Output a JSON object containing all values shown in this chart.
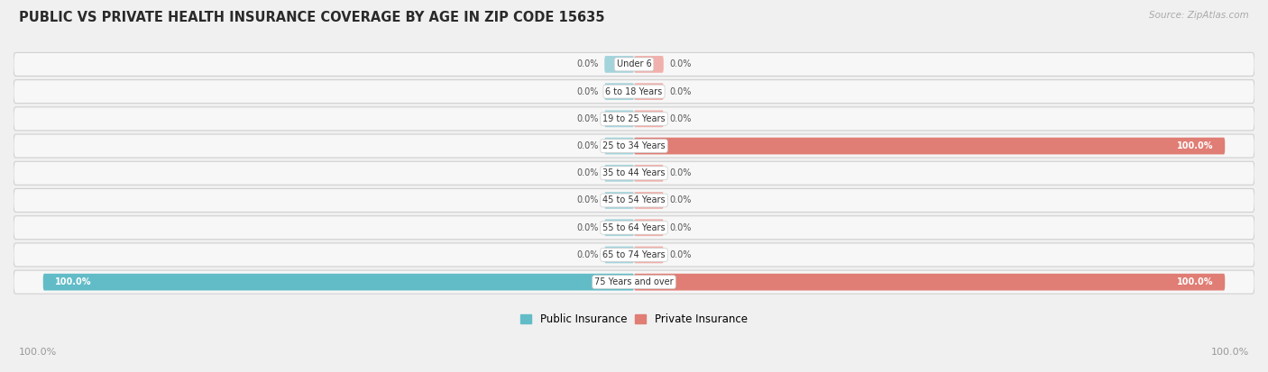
{
  "title": "PUBLIC VS PRIVATE HEALTH INSURANCE COVERAGE BY AGE IN ZIP CODE 15635",
  "source": "Source: ZipAtlas.com",
  "categories": [
    "Under 6",
    "6 to 18 Years",
    "19 to 25 Years",
    "25 to 34 Years",
    "35 to 44 Years",
    "45 to 54 Years",
    "55 to 64 Years",
    "65 to 74 Years",
    "75 Years and over"
  ],
  "public_values": [
    0.0,
    0.0,
    0.0,
    0.0,
    0.0,
    0.0,
    0.0,
    0.0,
    100.0
  ],
  "private_values": [
    0.0,
    0.0,
    0.0,
    100.0,
    0.0,
    0.0,
    0.0,
    0.0,
    100.0
  ],
  "public_color": "#62bcc8",
  "private_color": "#e07d74",
  "public_stub_color": "#a4d4db",
  "private_stub_color": "#f0b0ab",
  "row_bg_color": "#ececec",
  "row_inner_color": "#f7f7f7",
  "fig_bg_color": "#f0f0f0",
  "title_color": "#2a2a2a",
  "source_color": "#aaaaaa",
  "value_color_dark": "#555555",
  "value_color_light": "#ffffff",
  "legend_public": "Public Insurance",
  "legend_private": "Private Insurance",
  "max_val": 100.0,
  "stub_pct": 5.0,
  "bottom_left": "100.0%",
  "bottom_right": "100.0%"
}
